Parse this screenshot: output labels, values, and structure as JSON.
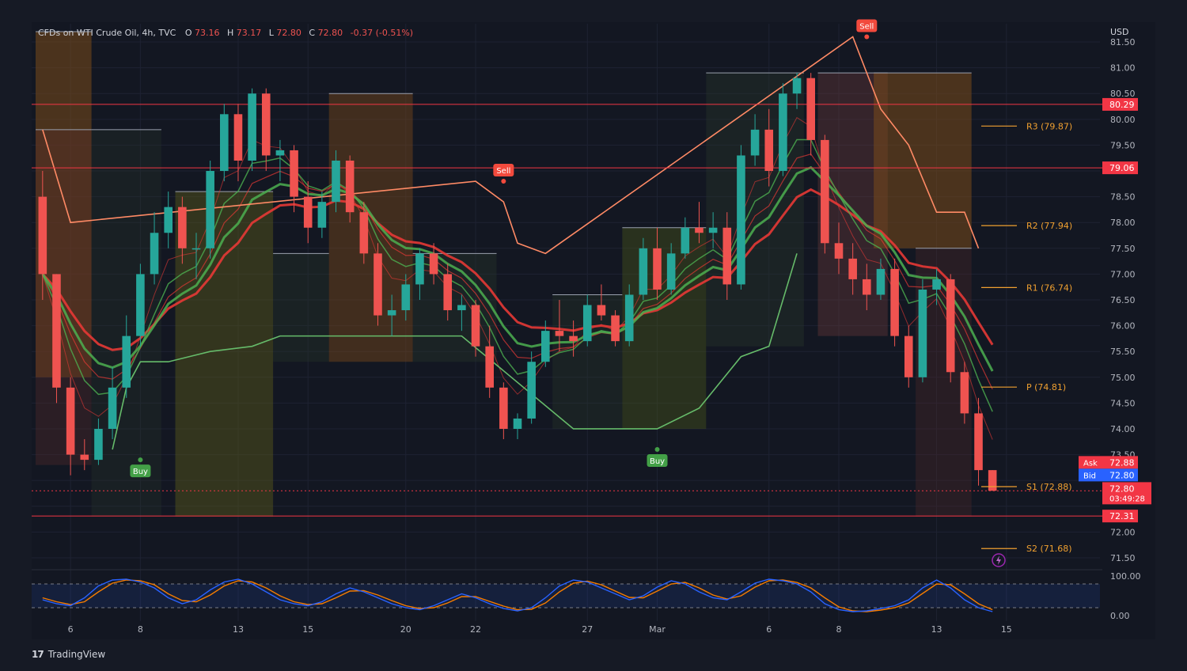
{
  "header": {
    "symbol": "CFDs on WTI Crude Oil, 4h, TVC",
    "open_label": "O",
    "open": "73.16",
    "high_label": "H",
    "high": "73.17",
    "low_label": "L",
    "low": "72.80",
    "close_label": "C",
    "close": "72.80",
    "change": "-0.37 (-0.51%)"
  },
  "price_scale": {
    "currency": "USD",
    "ticks": [
      "81.50",
      "81.00",
      "80.50",
      "80.00",
      "79.50",
      "79.00",
      "78.50",
      "78.00",
      "77.50",
      "77.00",
      "76.50",
      "76.00",
      "75.50",
      "75.00",
      "74.50",
      "74.00",
      "73.50",
      "72.00",
      "71.50"
    ]
  },
  "price_tags": {
    "level_1": "80.29",
    "level_2": "79.06",
    "ask_label": "Ask",
    "ask": "72.88",
    "bid_label": "Bid",
    "bid": "72.80",
    "last": "72.80",
    "countdown": "03:49:28",
    "level_3": "72.31"
  },
  "pivots": [
    {
      "label": "R3 (79.87)",
      "value": 79.87
    },
    {
      "label": "R2 (77.94)",
      "value": 77.94
    },
    {
      "label": "R1 (76.74)",
      "value": 76.74
    },
    {
      "label": "P (74.81)",
      "value": 74.81
    },
    {
      "label": "S1 (72.88)",
      "value": 72.88
    },
    {
      "label": "S2 (71.68)",
      "value": 71.68
    }
  ],
  "signals": [
    {
      "label": "Sell",
      "bar": 33,
      "price": 78.8,
      "type": "sell"
    },
    {
      "label": "Sell",
      "bar": 59,
      "price": 81.6,
      "type": "sell"
    },
    {
      "label": "Buy",
      "bar": 7,
      "price": 73.4,
      "type": "buy"
    },
    {
      "label": "Buy",
      "bar": 44,
      "price": 73.6,
      "type": "buy"
    }
  ],
  "x_axis": {
    "labels": [
      {
        "text": "6",
        "bar": 2
      },
      {
        "text": "8",
        "bar": 7
      },
      {
        "text": "13",
        "bar": 14
      },
      {
        "text": "15",
        "bar": 19
      },
      {
        "text": "20",
        "bar": 26
      },
      {
        "text": "22",
        "bar": 31
      },
      {
        "text": "27",
        "bar": 39
      },
      {
        "text": "Mar",
        "bar": 44
      },
      {
        "text": "6",
        "bar": 52
      },
      {
        "text": "8",
        "bar": 57
      },
      {
        "text": "13",
        "bar": 64
      },
      {
        "text": "15",
        "bar": 69
      }
    ]
  },
  "oscillator": {
    "ticks": [
      "100.00",
      "0.00"
    ]
  },
  "brand": "TradingView",
  "colors": {
    "background": "#161a25",
    "up": "#26a69a",
    "down": "#ef5350",
    "ema_green": "#4caf50",
    "ema_red": "#e53935",
    "pivot": "#f0a030",
    "level_line": "#f23645",
    "trail_up": "#66bb6a",
    "trail_down": "#ff8a65",
    "osc_fast": "#2962ff",
    "osc_slow": "#f57c00"
  },
  "chart_data": {
    "type": "candlestick",
    "title": "CFDs on WTI Crude Oil, 4h, TVC",
    "ylim": [
      71.3,
      81.7
    ],
    "horizontal_levels": [
      80.29,
      79.06,
      72.31
    ],
    "candles": [
      [
        78.5,
        79.0,
        76.5,
        77.0
      ],
      [
        77.0,
        77.0,
        74.5,
        74.8
      ],
      [
        74.8,
        75.0,
        73.1,
        73.5
      ],
      [
        73.5,
        73.8,
        73.2,
        73.4
      ],
      [
        73.4,
        74.2,
        73.3,
        74.0
      ],
      [
        74.0,
        75.2,
        73.8,
        74.8
      ],
      [
        74.8,
        76.2,
        74.6,
        75.8
      ],
      [
        75.8,
        77.2,
        75.6,
        77.0
      ],
      [
        77.0,
        78.2,
        76.8,
        77.8
      ],
      [
        77.8,
        78.6,
        77.5,
        78.3
      ],
      [
        78.3,
        78.5,
        77.2,
        77.5
      ],
      [
        77.5,
        77.8,
        76.9,
        77.5
      ],
      [
        77.5,
        79.2,
        77.3,
        79.0
      ],
      [
        79.0,
        80.3,
        78.8,
        80.1
      ],
      [
        80.1,
        80.3,
        78.8,
        79.2
      ],
      [
        79.2,
        80.6,
        79.0,
        80.5
      ],
      [
        80.5,
        80.6,
        79.0,
        79.3
      ],
      [
        79.3,
        79.6,
        78.8,
        79.4
      ],
      [
        79.4,
        79.5,
        78.2,
        78.5
      ],
      [
        78.5,
        78.8,
        77.6,
        77.9
      ],
      [
        77.9,
        78.6,
        77.7,
        78.4
      ],
      [
        78.4,
        79.4,
        78.2,
        79.2
      ],
      [
        79.2,
        79.3,
        78.0,
        78.2
      ],
      [
        78.2,
        78.4,
        77.2,
        77.4
      ],
      [
        77.4,
        77.6,
        76.0,
        76.2
      ],
      [
        76.2,
        76.6,
        75.8,
        76.3
      ],
      [
        76.3,
        77.0,
        76.1,
        76.8
      ],
      [
        76.8,
        77.5,
        76.5,
        77.4
      ],
      [
        77.4,
        77.6,
        76.8,
        77.0
      ],
      [
        77.0,
        77.2,
        76.1,
        76.3
      ],
      [
        76.3,
        76.6,
        75.9,
        76.4
      ],
      [
        76.4,
        76.5,
        75.4,
        75.6
      ],
      [
        75.6,
        76.0,
        74.6,
        74.8
      ],
      [
        74.8,
        74.9,
        73.8,
        74.0
      ],
      [
        74.0,
        74.3,
        73.8,
        74.2
      ],
      [
        74.2,
        75.5,
        74.1,
        75.3
      ],
      [
        75.3,
        76.1,
        75.2,
        75.9
      ],
      [
        75.9,
        76.5,
        75.5,
        75.8
      ],
      [
        75.8,
        76.1,
        75.4,
        75.7
      ],
      [
        75.7,
        76.6,
        75.6,
        76.4
      ],
      [
        76.4,
        76.8,
        76.1,
        76.2
      ],
      [
        76.2,
        76.3,
        75.6,
        75.7
      ],
      [
        75.7,
        76.8,
        75.6,
        76.6
      ],
      [
        76.6,
        77.7,
        76.5,
        77.5
      ],
      [
        77.5,
        77.9,
        76.5,
        76.7
      ],
      [
        76.7,
        77.6,
        76.6,
        77.4
      ],
      [
        77.4,
        78.1,
        77.3,
        77.9
      ],
      [
        77.9,
        78.4,
        77.6,
        77.8
      ],
      [
        77.8,
        78.2,
        77.5,
        77.9
      ],
      [
        77.9,
        78.2,
        76.5,
        76.8
      ],
      [
        76.8,
        79.5,
        76.7,
        79.3
      ],
      [
        79.3,
        80.1,
        79.1,
        79.8
      ],
      [
        79.8,
        80.2,
        78.7,
        79.0
      ],
      [
        79.0,
        80.7,
        78.9,
        80.5
      ],
      [
        80.5,
        80.9,
        80.2,
        80.8
      ],
      [
        80.8,
        80.9,
        79.3,
        79.6
      ],
      [
        79.6,
        79.7,
        77.4,
        77.6
      ],
      [
        77.6,
        78.0,
        77.0,
        77.3
      ],
      [
        77.3,
        77.6,
        76.6,
        76.9
      ],
      [
        76.9,
        77.2,
        76.3,
        76.6
      ],
      [
        76.6,
        77.3,
        76.5,
        77.1
      ],
      [
        77.1,
        77.3,
        75.6,
        75.8
      ],
      [
        75.8,
        76.0,
        74.8,
        75.0
      ],
      [
        75.0,
        76.9,
        74.9,
        76.7
      ],
      [
        76.7,
        77.1,
        76.4,
        76.9
      ],
      [
        76.9,
        77.0,
        74.9,
        75.1
      ],
      [
        75.1,
        75.3,
        74.1,
        74.3
      ],
      [
        74.3,
        74.6,
        72.9,
        73.2
      ],
      [
        73.2,
        73.2,
        72.8,
        72.8
      ]
    ],
    "oscillator_values": {
      "fast": [
        40,
        30,
        25,
        45,
        75,
        90,
        92,
        85,
        70,
        45,
        30,
        40,
        65,
        85,
        92,
        80,
        60,
        40,
        30,
        25,
        35,
        55,
        70,
        60,
        45,
        30,
        20,
        15,
        25,
        40,
        55,
        45,
        30,
        18,
        12,
        20,
        45,
        75,
        90,
        85,
        70,
        55,
        40,
        50,
        72,
        88,
        80,
        60,
        45,
        40,
        60,
        82,
        92,
        88,
        80,
        60,
        30,
        15,
        10,
        12,
        18,
        25,
        40,
        70,
        90,
        70,
        40,
        20,
        10
      ],
      "slow": [
        45,
        35,
        28,
        35,
        60,
        82,
        90,
        88,
        78,
        55,
        38,
        35,
        52,
        75,
        88,
        85,
        70,
        50,
        35,
        28,
        30,
        45,
        62,
        63,
        52,
        38,
        25,
        18,
        20,
        32,
        48,
        48,
        36,
        24,
        15,
        16,
        32,
        60,
        82,
        87,
        78,
        62,
        46,
        45,
        62,
        80,
        84,
        70,
        52,
        42,
        50,
        72,
        88,
        90,
        84,
        70,
        45,
        22,
        12,
        10,
        14,
        20,
        32,
        56,
        80,
        78,
        55,
        30,
        15
      ]
    }
  }
}
